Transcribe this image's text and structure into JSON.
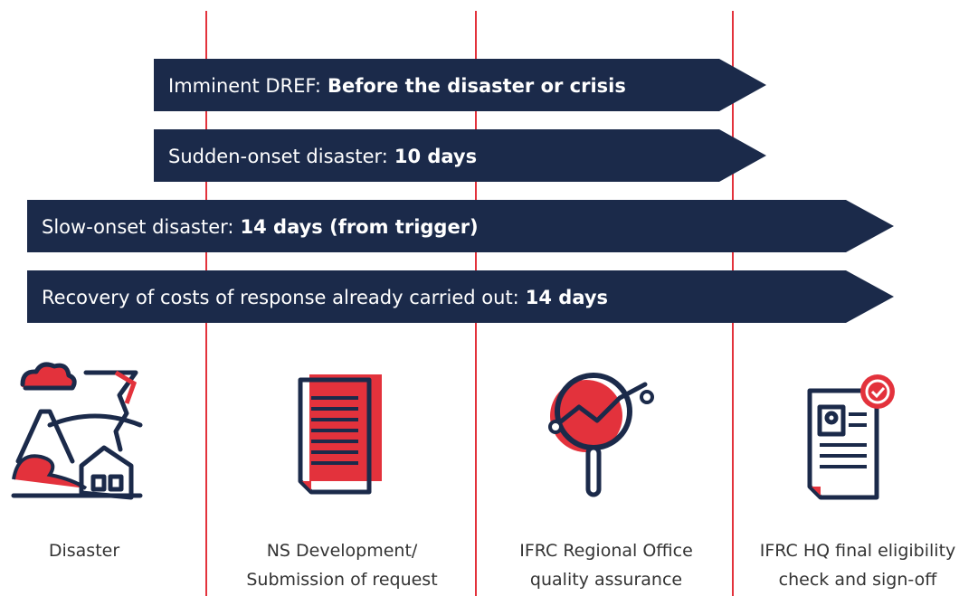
{
  "arrows": [
    {
      "prefix": "Imminent DREF:",
      "bold": "Before the disaster or crisis"
    },
    {
      "prefix": "Sudden-onset disaster:",
      "bold": "10 days"
    },
    {
      "prefix": "Slow-onset disaster:",
      "bold": "14 days (from trigger)"
    },
    {
      "prefix": "Recovery of costs of response already carried out:",
      "bold": "14 days"
    }
  ],
  "stages": [
    {
      "lines": [
        "Disaster"
      ]
    },
    {
      "lines": [
        "NS Development/",
        "Submission of request"
      ]
    },
    {
      "lines": [
        "IFRC Regional Office",
        "quality assurance"
      ]
    },
    {
      "lines": [
        "IFRC HQ final eligibility",
        "check and sign-off"
      ]
    }
  ]
}
